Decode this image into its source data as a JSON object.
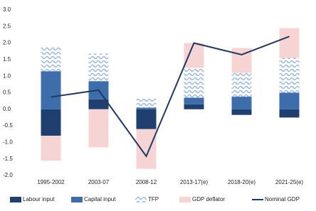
{
  "chart_data": {
    "type": "stacked-bar-line",
    "categories": [
      "1995-2002",
      "2003-07",
      "2008-12",
      "2013-17(e)",
      "2018-20(e)",
      "2021-25(e)"
    ],
    "series": [
      {
        "name": "Labour input",
        "color": "#1f3f6e",
        "values": [
          -0.8,
          0.3,
          -0.6,
          0.15,
          -0.17,
          -0.25
        ]
      },
      {
        "name": "Capital input",
        "color": "#3d6eab",
        "values": [
          1.15,
          0.55,
          0.05,
          0.2,
          0.38,
          0.5
        ]
      },
      {
        "name": "TFP",
        "color": "#9dbbe0",
        "pattern": "wave",
        "values": [
          0.75,
          0.83,
          0.27,
          0.9,
          0.72,
          1.05
        ]
      },
      {
        "name": "GDP deflator",
        "color": "#f6d4d4",
        "values": [
          -0.75,
          -1.15,
          -1.2,
          0.75,
          0.75,
          0.9
        ]
      },
      {
        "name": "Nominal GDP",
        "color": "#1f3864",
        "type": "line",
        "values": [
          0.37,
          0.58,
          -1.42,
          2.0,
          1.65,
          2.2
        ]
      }
    ],
    "ylim": [
      -2.0,
      3.0
    ],
    "yticks": [
      {
        "value": 3,
        "label": "3.0"
      },
      {
        "value": 2.5,
        "label": "2.5"
      },
      {
        "value": 2,
        "label": "2.0"
      },
      {
        "value": 1.5,
        "label": "1.5"
      },
      {
        "value": 1,
        "label": "1.0"
      },
      {
        "value": 0.5,
        "label": "0.5"
      },
      {
        "value": 0,
        "label": "0.0"
      },
      {
        "value": -0.5,
        "label": "-0.5"
      },
      {
        "value": -1,
        "label": "-1.0"
      },
      {
        "value": -1.5,
        "label": "-1.5"
      },
      {
        "value": -2,
        "label": "-2.0"
      }
    ],
    "grid": false
  }
}
